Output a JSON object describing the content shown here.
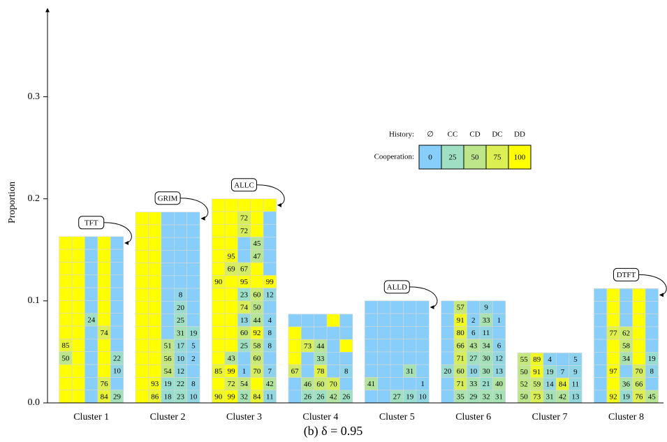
{
  "chart_data": {
    "type": "cellbar",
    "caption": "(b) δ = 0.95",
    "ylabel": "Proportion",
    "categories": [
      "Cluster 1",
      "Cluster 2",
      "Cluster 3",
      "Cluster 4",
      "Cluster 5",
      "Cluster 6",
      "Cluster 7",
      "Cluster 8"
    ],
    "values": [
      0.163,
      0.187,
      0.2,
      0.087,
      0.1,
      0.1,
      0.049,
      0.112
    ],
    "strategy_labels": [
      "TFT",
      "GRIM",
      "ALLC",
      null,
      "ALLD",
      null,
      null,
      "DTFT"
    ],
    "ylim": [
      0,
      0.388
    ],
    "yticks": [
      {
        "value": 0,
        "label": "0.0"
      },
      0.1,
      0.2,
      0.3
    ],
    "legend": {
      "history_label": "History:",
      "histories": [
        "∅",
        "CC",
        "CD",
        "DC",
        "DD"
      ],
      "cooperation_label": "Cooperation:",
      "levels": [
        0,
        25,
        50,
        75,
        100
      ],
      "colors": [
        "#87cefa",
        "#9fe0c4",
        "#bde68a",
        "#dcef52",
        "#ffff00"
      ]
    },
    "cells": [
      [
        [
          100,
          100,
          0,
          100,
          0
        ],
        [
          100,
          100,
          0,
          100,
          0
        ],
        [
          100,
          100,
          0,
          100,
          0
        ],
        [
          100,
          100,
          0,
          100,
          0
        ],
        [
          100,
          100,
          0,
          100,
          0
        ],
        [
          100,
          100,
          0,
          100,
          0
        ],
        [
          100,
          100,
          24,
          100,
          0
        ],
        [
          100,
          100,
          0,
          74,
          0
        ],
        [
          85,
          100,
          0,
          100,
          0
        ],
        [
          50,
          100,
          0,
          100,
          22
        ],
        [
          100,
          100,
          0,
          100,
          10
        ],
        [
          100,
          100,
          0,
          76,
          0
        ],
        [
          100,
          100,
          0,
          84,
          29
        ]
      ],
      [
        [
          100,
          100,
          0,
          0,
          0
        ],
        [
          100,
          100,
          0,
          0,
          0
        ],
        [
          100,
          100,
          0,
          0,
          0
        ],
        [
          100,
          100,
          0,
          0,
          0
        ],
        [
          100,
          100,
          0,
          0,
          0
        ],
        [
          100,
          100,
          0,
          0,
          0
        ],
        [
          100,
          100,
          0,
          8,
          0
        ],
        [
          100,
          100,
          0,
          20,
          0
        ],
        [
          100,
          100,
          0,
          25,
          0
        ],
        [
          100,
          100,
          0,
          31,
          19
        ],
        [
          100,
          100,
          51,
          17,
          5
        ],
        [
          100,
          100,
          56,
          10,
          2
        ],
        [
          100,
          100,
          54,
          12,
          0
        ],
        [
          100,
          93,
          19,
          22,
          8
        ],
        [
          100,
          86,
          18,
          23,
          10
        ]
      ],
      [
        [
          100,
          100,
          100,
          100,
          100
        ],
        [
          100,
          100,
          72,
          100,
          0
        ],
        [
          100,
          100,
          72,
          100,
          0
        ],
        [
          100,
          100,
          0,
          45,
          0
        ],
        [
          100,
          95,
          0,
          47,
          0
        ],
        [
          100,
          69,
          67,
          100,
          0
        ],
        [
          90,
          100,
          95,
          100,
          99
        ],
        [
          100,
          100,
          23,
          60,
          12
        ],
        [
          100,
          100,
          74,
          50,
          0
        ],
        [
          100,
          100,
          13,
          44,
          4
        ],
        [
          100,
          100,
          60,
          92,
          8
        ],
        [
          100,
          100,
          25,
          58,
          8
        ],
        [
          100,
          43,
          0,
          60,
          0
        ],
        [
          85,
          99,
          1,
          70,
          7
        ],
        [
          100,
          72,
          54,
          100,
          42
        ],
        [
          90,
          99,
          32,
          84,
          11
        ]
      ],
      [
        [
          0,
          0,
          0,
          100,
          0
        ],
        [
          100,
          0,
          0,
          0,
          0
        ],
        [
          100,
          73,
          44,
          0,
          100
        ],
        [
          100,
          0,
          33,
          0,
          0
        ],
        [
          67,
          0,
          78,
          0,
          8
        ],
        [
          0,
          46,
          60,
          70,
          0
        ],
        [
          0,
          26,
          26,
          42,
          26
        ]
      ],
      [
        [
          0,
          0,
          0,
          0,
          0
        ],
        [
          0,
          0,
          0,
          0,
          0
        ],
        [
          0,
          0,
          0,
          0,
          0
        ],
        [
          0,
          0,
          0,
          0,
          0
        ],
        [
          0,
          0,
          0,
          0,
          0
        ],
        [
          0,
          0,
          0,
          31,
          0
        ],
        [
          41,
          0,
          0,
          0,
          1
        ],
        [
          0,
          0,
          27,
          19,
          10
        ]
      ],
      [
        [
          0,
          57,
          0,
          9,
          0
        ],
        [
          0,
          91,
          2,
          33,
          1
        ],
        [
          0,
          80,
          6,
          11,
          0
        ],
        [
          0,
          66,
          43,
          34,
          6
        ],
        [
          0,
          71,
          27,
          30,
          12
        ],
        [
          20,
          60,
          10,
          30,
          13
        ],
        [
          0,
          71,
          33,
          21,
          40
        ],
        [
          0,
          35,
          29,
          32,
          31
        ]
      ],
      [
        [
          55,
          89,
          4,
          0,
          5
        ],
        [
          50,
          91,
          19,
          7,
          9
        ],
        [
          52,
          59,
          14,
          84,
          11
        ],
        [
          50,
          73,
          31,
          42,
          13
        ]
      ],
      [
        [
          0,
          100,
          0,
          100,
          0
        ],
        [
          0,
          100,
          0,
          100,
          0
        ],
        [
          0,
          100,
          0,
          100,
          0
        ],
        [
          0,
          77,
          62,
          100,
          0
        ],
        [
          0,
          100,
          58,
          100,
          0
        ],
        [
          0,
          100,
          34,
          100,
          19
        ],
        [
          0,
          97,
          0,
          70,
          8
        ],
        [
          0,
          100,
          36,
          66,
          0
        ],
        [
          0,
          92,
          19,
          76,
          45
        ]
      ]
    ]
  }
}
